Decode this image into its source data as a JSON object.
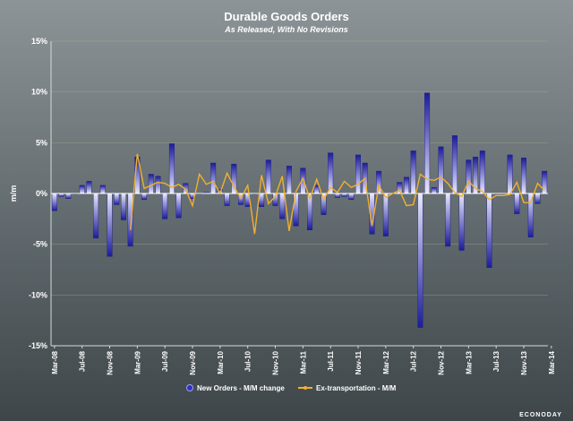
{
  "chart_data": {
    "type": "bar",
    "title": "Durable Goods Orders",
    "subtitle": "As Released, With No Revisions",
    "ylabel": "m/m",
    "ylim": [
      -15,
      15
    ],
    "yticks": [
      "15%",
      "10%",
      "5%",
      "0%",
      "-5%",
      "-10%",
      "-15%"
    ],
    "xticks": [
      "Mar-08",
      "Jul-08",
      "Nov-08",
      "Mar-09",
      "Jul-09",
      "Nov-09",
      "Mar-10",
      "Jul-10",
      "Nov-10",
      "Mar-11",
      "Jul-11",
      "Nov-11",
      "Mar-12",
      "Jul-12",
      "Nov-12",
      "Mar-13",
      "Jul-13",
      "Nov-13",
      "Mar-14"
    ],
    "grid": true,
    "legend_position": "bottom",
    "series": [
      {
        "name": "New Orders - M/M change",
        "kind": "bar",
        "color": "#2a2aa8",
        "values": [
          -1.7,
          -0.3,
          -0.5,
          0.0,
          0.8,
          1.2,
          -4.4,
          0.8,
          -6.2,
          -1.1,
          -2.6,
          -5.2,
          3.6,
          -0.6,
          1.9,
          1.7,
          -2.5,
          4.9,
          -2.4,
          1.0,
          -0.5,
          0.0,
          0.1,
          3.0,
          0.4,
          -1.2,
          2.9,
          -1.1,
          -1.3,
          0.0,
          -1.3,
          3.3,
          -1.2,
          -2.5,
          2.7,
          -3.2,
          2.5,
          -3.6,
          0.8,
          -2.1,
          4.0,
          -0.4,
          -0.3,
          -0.6,
          3.8,
          3.0,
          -4.0,
          2.2,
          -4.2,
          0.0,
          1.1,
          1.6,
          4.2,
          -13.2,
          9.9,
          0.6,
          4.6,
          -5.2,
          5.7,
          -5.6,
          3.3,
          3.6,
          4.2,
          -7.3,
          0.0,
          0.0,
          3.8,
          -2.0,
          3.5,
          -4.3,
          -1.0,
          2.2
        ]
      },
      {
        "name": "Ex-transportation - M/M",
        "kind": "line",
        "color": "#f0b030",
        "values": [
          null,
          null,
          null,
          null,
          null,
          null,
          null,
          null,
          null,
          null,
          null,
          -3.6,
          3.9,
          0.5,
          0.8,
          1.1,
          1.0,
          0.6,
          0.9,
          0.4,
          -1.2,
          1.9,
          0.9,
          1.2,
          0.0,
          2.0,
          0.7,
          -0.5,
          0.8,
          -4.0,
          1.8,
          -1.0,
          -0.3,
          1.7,
          -3.7,
          0.2,
          1.5,
          -0.5,
          1.4,
          -0.6,
          0.6,
          0.1,
          1.2,
          0.6,
          0.9,
          1.5,
          -3.2,
          0.8,
          -0.4,
          0.0,
          0.3,
          -1.2,
          -1.1,
          1.9,
          1.4,
          1.3,
          1.6,
          1.0,
          0.1,
          -0.3,
          1.2,
          0.5,
          0.2,
          -0.6,
          -0.2,
          -0.2,
          -0.1,
          1.1,
          -0.9,
          -0.9,
          1.0,
          0.3
        ]
      }
    ]
  },
  "brand": "ECONODAY"
}
